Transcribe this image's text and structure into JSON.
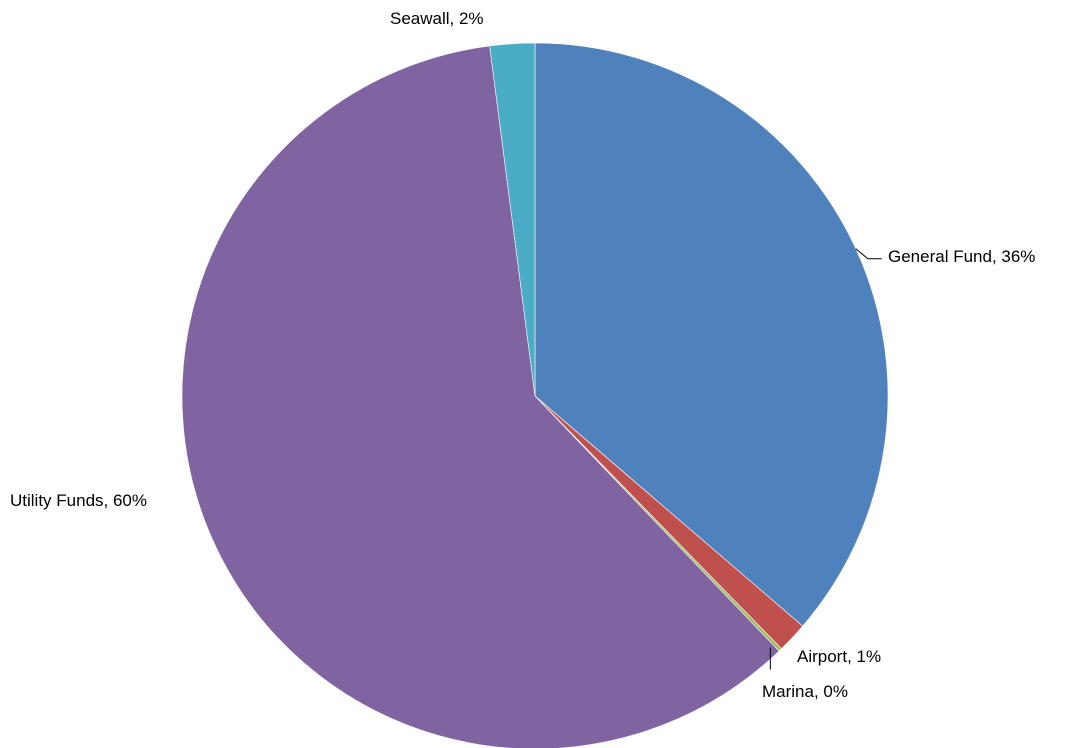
{
  "chart_data": {
    "type": "pie",
    "slices": [
      {
        "label": "General Fund",
        "value": 36.3,
        "display": "General Fund, 36%",
        "color": "#4F81BD"
      },
      {
        "label": "Airport",
        "value": 1.4,
        "display": "Airport, 1%",
        "color": "#C0504D"
      },
      {
        "label": "Marina",
        "value": 0.15,
        "display": "Marina, 0%",
        "color": "#9BBB59"
      },
      {
        "label": "Utility Funds",
        "value": 60.1,
        "display": "Utility Funds, 60%",
        "color": "#8064A2"
      },
      {
        "label": "Seawall",
        "value": 2.05,
        "display": "Seawall, 2%",
        "color": "#4BACC6"
      }
    ],
    "start_angle_deg": 0,
    "direction": "clockwise",
    "legend": "none",
    "data_labels": "outside with leader lines"
  }
}
